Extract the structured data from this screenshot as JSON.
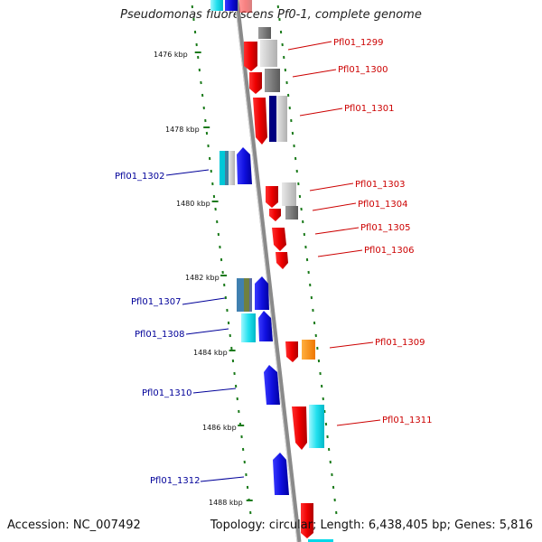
{
  "title": "Pseudomonas fluorescens Pf0-1, complete genome",
  "footer": {
    "accession": "Accession: NC_007492",
    "stats": "Topology: circular; Length: 6,438,405 bp; Genes: 5,816"
  },
  "colors": {
    "forward_label": "#cc0000",
    "reverse_label": "#000099",
    "tick": "#1a7a1a",
    "backbone": "#8a8a8a"
  },
  "kbp_labels": [
    "1476 kbp",
    "1478 kbp",
    "1480 kbp",
    "1482 kbp",
    "1484 kbp",
    "1486 kbp",
    "1488 kbp"
  ],
  "genes": [
    {
      "id": "Pfl01_1299",
      "strand": "forward"
    },
    {
      "id": "Pfl01_1300",
      "strand": "forward"
    },
    {
      "id": "Pfl01_1301",
      "strand": "forward"
    },
    {
      "id": "Pfl01_1302",
      "strand": "reverse"
    },
    {
      "id": "Pfl01_1303",
      "strand": "forward"
    },
    {
      "id": "Pfl01_1304",
      "strand": "forward"
    },
    {
      "id": "Pfl01_1305",
      "strand": "forward"
    },
    {
      "id": "Pfl01_1306",
      "strand": "forward"
    },
    {
      "id": "Pfl01_1307",
      "strand": "reverse"
    },
    {
      "id": "Pfl01_1308",
      "strand": "reverse"
    },
    {
      "id": "Pfl01_1309",
      "strand": "forward"
    },
    {
      "id": "Pfl01_1310",
      "strand": "reverse"
    },
    {
      "id": "Pfl01_1311",
      "strand": "forward"
    },
    {
      "id": "Pfl01_1312",
      "strand": "reverse"
    }
  ]
}
